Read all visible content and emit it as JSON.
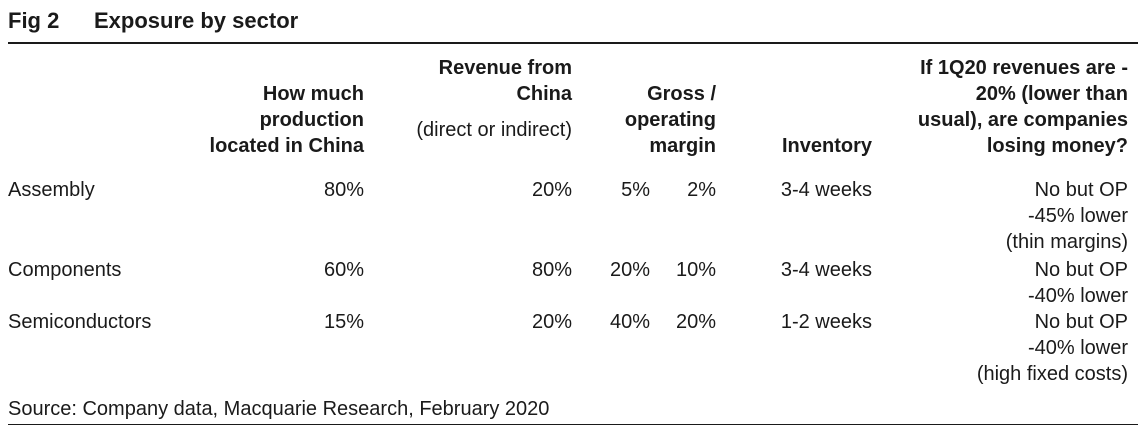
{
  "figure": {
    "label": "Fig 2",
    "title": "Exposure by sector"
  },
  "headers": {
    "production": "How much\nproduction\nlocated in China",
    "revenue": "Revenue from\nChina",
    "revenue_sub": "(direct or indirect)",
    "margin": "Gross /\noperating\nmargin",
    "inventory": "Inventory",
    "losing": "If 1Q20 revenues are -\n20% (lower than\nusual), are companies\nlosing money?"
  },
  "rows": [
    {
      "sector": "Assembly",
      "production": "80%",
      "revenue": "20%",
      "gross": "5%",
      "operating": "2%",
      "inventory": "3-4 weeks",
      "losing": "No but OP\n-45% lower\n(thin margins)"
    },
    {
      "sector": "Components",
      "production": "60%",
      "revenue": "80%",
      "gross": "20%",
      "operating": "10%",
      "inventory": "3-4 weeks",
      "losing": "No but OP\n-40% lower"
    },
    {
      "sector": "Semiconductors",
      "production": "15%",
      "revenue": "20%",
      "gross": "40%",
      "operating": "20%",
      "inventory": "1-2 weeks",
      "losing": "No but OP\n-40% lower\n(high fixed costs)"
    }
  ],
  "source": "Source: Company data, Macquarie Research, February 2020"
}
